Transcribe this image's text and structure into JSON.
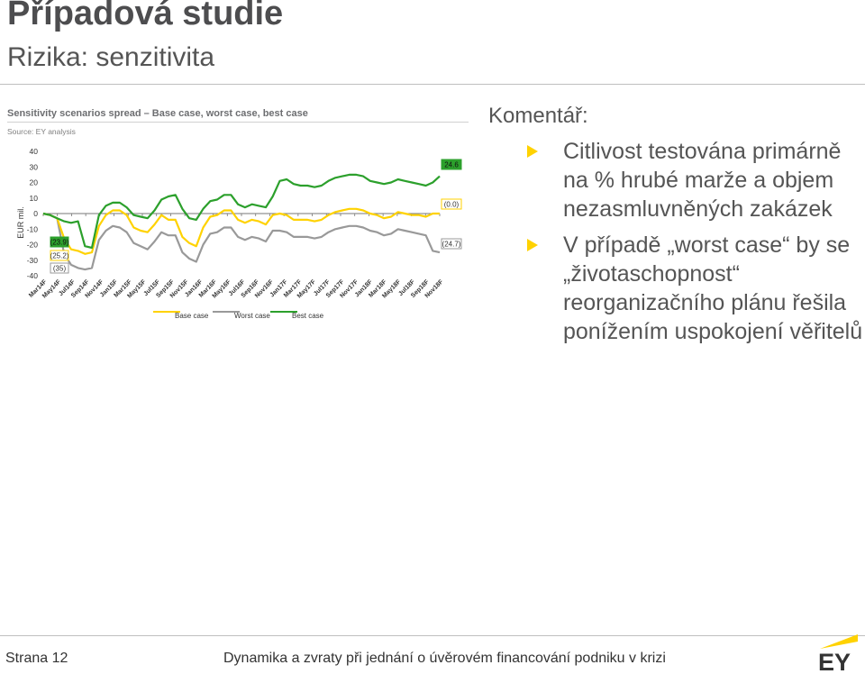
{
  "header": {
    "title": "Případová studie",
    "subtitle": "Rizika: senzitivita"
  },
  "chart_data": {
    "type": "line",
    "title": "Sensitivity scenarios spread – Base case, worst case, best case",
    "source": "Source: EY analysis",
    "ylabel": "EUR mil.",
    "ylim": [
      -40,
      40
    ],
    "yticks": [
      "40",
      "30",
      "20",
      "10",
      "0",
      "-10",
      "-20",
      "-30",
      "-40"
    ],
    "xtick_labels": [
      "Mar14F",
      "May14F",
      "Jul14F",
      "Sep14F",
      "Nov14F",
      "Jan15F",
      "Mar15F",
      "May15F",
      "Jul15F",
      "Sep15F",
      "Nov15F",
      "Jan16F",
      "Mar16F",
      "May16F",
      "Jul16F",
      "Sep16F",
      "Nov16F",
      "Jan17F",
      "Mar17F",
      "May17F",
      "Jul17F",
      "Sep17F",
      "Nov17F",
      "Jan18F",
      "Mar18F",
      "May18F",
      "Jul18F",
      "Sep18F",
      "Nov18F"
    ],
    "series": [
      {
        "name": "Base case",
        "color": "#ffd200",
        "values": [
          0,
          -1,
          -3,
          -16,
          -23,
          -24,
          -26,
          -25,
          -8,
          -1,
          2,
          2,
          -1,
          -9,
          -11,
          -12,
          -7,
          -1,
          -4,
          -4,
          -15,
          -19,
          -21,
          -9,
          -2,
          -1,
          2,
          2,
          -4,
          -6,
          -4,
          -5,
          -7,
          -1,
          0,
          -1,
          -4,
          -4,
          -4,
          -5,
          -4,
          -1,
          1,
          2,
          3,
          3,
          2,
          0,
          -1,
          -3,
          -2,
          1,
          0,
          -1,
          -1,
          -2,
          0,
          0
        ]
      },
      {
        "name": "Worst case",
        "color": "#999999",
        "values": [
          0,
          -1,
          -3,
          -26,
          -33,
          -35,
          -36,
          -35,
          -17,
          -11,
          -8,
          -9,
          -12,
          -19,
          -21,
          -23,
          -18,
          -12,
          -14,
          -14,
          -25,
          -29,
          -31,
          -20,
          -13,
          -12,
          -9,
          -9,
          -15,
          -17,
          -15,
          -16,
          -18,
          -11,
          -11,
          -12,
          -15,
          -15,
          -15,
          -16,
          -15,
          -12,
          -10,
          -9,
          -8,
          -8,
          -9,
          -11,
          -12,
          -14,
          -13,
          -10,
          -11,
          -12,
          -13,
          -14,
          -24,
          -25
        ]
      },
      {
        "name": "Best case",
        "color": "#2ca02c",
        "values": [
          0,
          -1,
          -3,
          -5,
          -6,
          -5,
          -21,
          -22,
          -1,
          5,
          7,
          7,
          4,
          -1,
          -2,
          -3,
          2,
          9,
          11,
          12,
          3,
          -3,
          -4,
          3,
          8,
          9,
          12,
          12,
          6,
          4,
          6,
          5,
          4,
          11,
          21,
          22,
          19,
          18,
          18,
          17,
          18,
          21,
          23,
          24,
          25,
          25,
          24,
          21,
          20,
          19,
          20,
          22,
          21,
          20,
          19,
          18,
          20,
          24
        ]
      }
    ],
    "end_labels": [
      {
        "text": "24.6",
        "style": "best"
      },
      {
        "text": "(0.0)",
        "style": "base"
      },
      {
        "text": "(24.7)",
        "style": "worst"
      }
    ],
    "start_labels": [
      {
        "text": "(23.9)",
        "style": "best"
      },
      {
        "text": "(25.2)",
        "style": "base"
      },
      {
        "text": "(35)",
        "style": "worst"
      }
    ],
    "legend": [
      "Base case",
      "Worst case",
      "Best case"
    ]
  },
  "comment": {
    "title": "Komentář:",
    "bullets": [
      "Citlivost testována primárně na % hrubé marže a objem nezasmluvněných zakázek",
      "V případě „worst case“ by se „životaschopnost“ reorganizačního plánu řešila ponížením uspokojení věřitelů"
    ]
  },
  "footer": {
    "page": "Strana 12",
    "center": "Dynamika a zvraty při jednání o úvěrovém financování podniku v krizi",
    "logo_text": "EY"
  },
  "colors": {
    "accent": "#ffd200",
    "best": "#2ca02c",
    "worst": "#999999"
  }
}
